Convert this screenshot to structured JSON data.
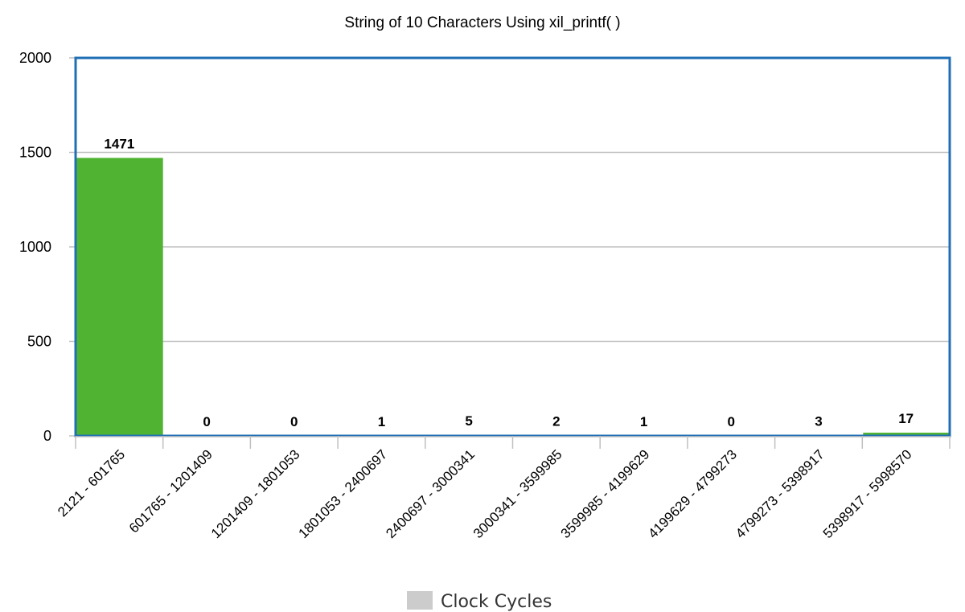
{
  "chart_data": {
    "type": "bar",
    "title": "String of 10 Characters Using xil_printf( )",
    "categories": [
      "2121 - 601765",
      "601765 - 1201409",
      "1201409 - 1801053",
      "1801053 - 2400697",
      "2400697 - 3000341",
      "3000341 - 3599985",
      "3599985 - 4199629",
      "4199629 - 4799273",
      "4799273 - 5398917",
      "5398917 - 5998570"
    ],
    "values": [
      1471,
      0,
      0,
      1,
      5,
      2,
      1,
      0,
      3,
      17
    ],
    "ylim": [
      0,
      2000
    ],
    "yticks": [
      0,
      500,
      1000,
      1500,
      2000
    ],
    "xlabel": "",
    "ylabel": "",
    "grid": true,
    "legend": {
      "position": "bottom-center",
      "entries": [
        "Clock Cycles"
      ]
    },
    "colors": {
      "bar": "#50b432",
      "frame": "#1f6fb5",
      "grid": "#c0c0c0",
      "legend_swatch": "#cccccc"
    }
  }
}
